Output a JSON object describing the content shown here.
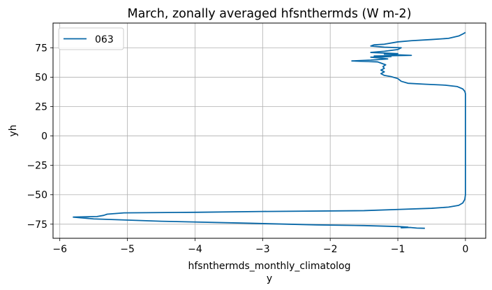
{
  "chart_data": {
    "type": "line",
    "title": "March, zonally averaged hfsnthermds (W m-2)",
    "xlabel_line1": "hfsnthermds_monthly_climatolog",
    "xlabel_line2": "y",
    "ylabel": "yh",
    "xlim": [
      -6.1,
      0.3
    ],
    "ylim": [
      -87,
      96
    ],
    "xticks": [
      -6,
      -5,
      -4,
      -3,
      -2,
      -1,
      0
    ],
    "xtick_labels": [
      "−6",
      "−5",
      "−4",
      "−3",
      "−2",
      "−1",
      "0"
    ],
    "yticks": [
      -75,
      -50,
      -25,
      0,
      25,
      50,
      75
    ],
    "ytick_labels": [
      "−75",
      "−50",
      "−25",
      "0",
      "25",
      "50",
      "75"
    ],
    "grid": true,
    "legend_position": "top-left",
    "series": [
      {
        "name": "063",
        "color": "#0868a8",
        "points": [
          [
            -0.6,
            -78.5
          ],
          [
            -0.72,
            -78.3
          ],
          [
            -0.82,
            -77.8
          ],
          [
            -0.95,
            -78.1
          ],
          [
            -0.85,
            -77.5
          ],
          [
            -1.0,
            -77.0
          ],
          [
            -1.5,
            -76.2
          ],
          [
            -2.2,
            -75.6
          ],
          [
            -3.2,
            -74.2
          ],
          [
            -4.5,
            -72.5
          ],
          [
            -5.5,
            -70.5
          ],
          [
            -5.8,
            -69.0
          ],
          [
            -5.45,
            -68.5
          ],
          [
            -5.35,
            -67.5
          ],
          [
            -5.3,
            -66.5
          ],
          [
            -5.05,
            -65.4
          ],
          [
            -4.0,
            -64.9
          ],
          [
            -3.0,
            -64.2
          ],
          [
            -1.5,
            -63.5
          ],
          [
            -1.0,
            -62.5
          ],
          [
            -0.5,
            -61.5
          ],
          [
            -0.25,
            -60.5
          ],
          [
            -0.1,
            -59.0
          ],
          [
            -0.04,
            -57.0
          ],
          [
            -0.01,
            -54.0
          ],
          [
            0.0,
            -50.0
          ],
          [
            0.0,
            0.0
          ],
          [
            0.0,
            36.0
          ],
          [
            -0.01,
            38.0
          ],
          [
            -0.04,
            40.0
          ],
          [
            -0.12,
            42.0
          ],
          [
            -0.3,
            43.2
          ],
          [
            -0.6,
            44.0
          ],
          [
            -0.85,
            44.8
          ],
          [
            -0.95,
            46.5
          ],
          [
            -1.0,
            48.8
          ],
          [
            -1.1,
            50.5
          ],
          [
            -1.2,
            51.5
          ],
          [
            -1.25,
            53.0
          ],
          [
            -1.2,
            54.5
          ],
          [
            -1.25,
            56.0
          ],
          [
            -1.2,
            57.5
          ],
          [
            -1.22,
            59.0
          ],
          [
            -1.18,
            60.5
          ],
          [
            -1.25,
            62.0
          ],
          [
            -1.3,
            63.0
          ],
          [
            -1.68,
            63.8
          ],
          [
            -1.4,
            64.5
          ],
          [
            -1.15,
            65.5
          ],
          [
            -1.3,
            66.5
          ],
          [
            -1.4,
            67.0
          ],
          [
            -1.1,
            67.5
          ],
          [
            -1.35,
            68.0
          ],
          [
            -0.8,
            68.5
          ],
          [
            -1.2,
            69.5
          ],
          [
            -1.0,
            70.0
          ],
          [
            -1.4,
            71.0
          ],
          [
            -1.2,
            72.0
          ],
          [
            -1.0,
            73.5
          ],
          [
            -0.95,
            75.0
          ],
          [
            -1.2,
            75.5
          ],
          [
            -1.4,
            76.5
          ],
          [
            -1.35,
            77.5
          ],
          [
            -1.2,
            78.0
          ],
          [
            -1.0,
            80.0
          ],
          [
            -0.8,
            81.0
          ],
          [
            -0.5,
            82.0
          ],
          [
            -0.25,
            83.0
          ],
          [
            -0.1,
            85.0
          ],
          [
            -0.03,
            87.0
          ],
          [
            0.0,
            88.0
          ]
        ]
      }
    ]
  }
}
